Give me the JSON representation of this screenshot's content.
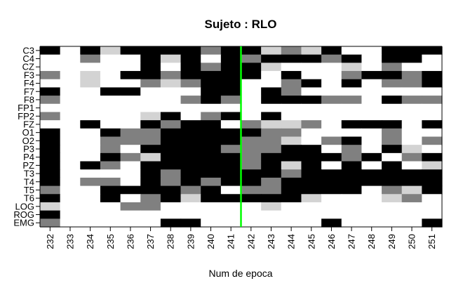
{
  "chart_data": {
    "type": "heatmap",
    "title": "Sujeto : RLO",
    "xlabel": "Num de epoca",
    "ylabel": "",
    "x": [
      "232",
      "233",
      "234",
      "235",
      "236",
      "237",
      "238",
      "239",
      "240",
      "241",
      "242",
      "243",
      "244",
      "245",
      "246",
      "247",
      "248",
      "249",
      "250",
      "251"
    ],
    "y": [
      "C3",
      "C4",
      "CZ",
      "F3",
      "F4",
      "F7",
      "F8",
      "FP1",
      "FP2",
      "FZ",
      "O1",
      "O2",
      "P3",
      "P4",
      "PZ",
      "T3",
      "T4",
      "T5",
      "T6",
      "LOG",
      "ROG",
      "EMG"
    ],
    "value_scale": {
      "0": "#ffffff",
      "1": "#d3d3d3",
      "2": "#808080",
      "3": "#000000"
    },
    "values": [
      [
        3,
        0,
        3,
        1,
        3,
        3,
        3,
        3,
        2,
        3,
        3,
        1,
        2,
        1,
        3,
        0,
        0,
        3,
        3,
        3
      ],
      [
        0,
        0,
        2,
        0,
        0,
        3,
        1,
        3,
        0,
        3,
        2,
        3,
        3,
        3,
        2,
        3,
        0,
        3,
        3,
        0
      ],
      [
        0,
        0,
        0,
        0,
        0,
        3,
        0,
        3,
        2,
        3,
        3,
        1,
        0,
        0,
        0,
        1,
        0,
        2,
        0,
        0
      ],
      [
        2,
        0,
        1,
        0,
        3,
        3,
        2,
        3,
        3,
        3,
        3,
        0,
        3,
        0,
        0,
        2,
        3,
        3,
        2,
        3
      ],
      [
        0,
        0,
        1,
        0,
        0,
        2,
        1,
        2,
        3,
        3,
        0,
        0,
        2,
        3,
        0,
        3,
        0,
        2,
        2,
        3
      ],
      [
        3,
        0,
        0,
        3,
        3,
        0,
        0,
        0,
        3,
        3,
        0,
        3,
        2,
        0,
        0,
        0,
        0,
        0,
        0,
        0
      ],
      [
        2,
        0,
        0,
        0,
        0,
        0,
        0,
        2,
        3,
        2,
        0,
        3,
        3,
        3,
        2,
        2,
        0,
        3,
        2,
        2
      ],
      [
        0,
        0,
        0,
        0,
        0,
        0,
        0,
        0,
        0,
        0,
        0,
        0,
        0,
        0,
        0,
        0,
        0,
        0,
        0,
        0
      ],
      [
        2,
        0,
        0,
        0,
        0,
        1,
        3,
        0,
        2,
        3,
        0,
        3,
        0,
        0,
        0,
        0,
        0,
        0,
        0,
        0
      ],
      [
        0,
        0,
        3,
        0,
        0,
        3,
        2,
        3,
        3,
        0,
        2,
        1,
        1,
        2,
        0,
        3,
        3,
        3,
        0,
        3
      ],
      [
        3,
        0,
        0,
        3,
        2,
        2,
        3,
        3,
        3,
        3,
        3,
        2,
        2,
        0,
        0,
        0,
        0,
        2,
        0,
        0
      ],
      [
        3,
        0,
        0,
        2,
        2,
        2,
        3,
        3,
        3,
        3,
        2,
        2,
        1,
        0,
        2,
        3,
        0,
        2,
        0,
        2
      ],
      [
        3,
        0,
        0,
        2,
        0,
        3,
        3,
        3,
        3,
        2,
        2,
        2,
        3,
        3,
        0,
        2,
        0,
        3,
        1,
        0
      ],
      [
        3,
        0,
        0,
        3,
        2,
        1,
        3,
        3,
        3,
        3,
        2,
        3,
        3,
        3,
        3,
        2,
        3,
        0,
        2,
        3
      ],
      [
        3,
        0,
        3,
        2,
        0,
        3,
        3,
        3,
        3,
        3,
        2,
        3,
        1,
        3,
        0,
        3,
        0,
        3,
        0,
        1
      ],
      [
        3,
        0,
        0,
        0,
        0,
        3,
        2,
        3,
        3,
        3,
        3,
        3,
        2,
        3,
        3,
        3,
        3,
        3,
        3,
        3
      ],
      [
        3,
        0,
        2,
        2,
        0,
        3,
        2,
        3,
        2,
        3,
        3,
        2,
        3,
        3,
        3,
        3,
        3,
        3,
        3,
        3
      ],
      [
        2,
        0,
        0,
        3,
        3,
        3,
        3,
        2,
        3,
        0,
        2,
        2,
        3,
        3,
        3,
        3,
        0,
        2,
        1,
        3
      ],
      [
        3,
        0,
        0,
        3,
        0,
        2,
        3,
        1,
        3,
        3,
        3,
        3,
        3,
        1,
        0,
        0,
        0,
        1,
        2,
        0
      ],
      [
        1,
        0,
        0,
        0,
        2,
        2,
        0,
        0,
        0,
        0,
        0,
        1,
        0,
        0,
        0,
        0,
        0,
        0,
        0,
        0
      ],
      [
        3,
        0,
        0,
        0,
        0,
        0,
        0,
        0,
        0,
        0,
        0,
        0,
        0,
        0,
        0,
        0,
        0,
        0,
        0,
        0
      ],
      [
        2,
        0,
        0,
        0,
        0,
        0,
        3,
        3,
        0,
        0,
        0,
        0,
        0,
        0,
        3,
        0,
        0,
        0,
        0,
        3
      ]
    ],
    "marker_line": {
      "x": "242",
      "color": "#00ff00"
    },
    "legend": "none",
    "grid": false
  }
}
